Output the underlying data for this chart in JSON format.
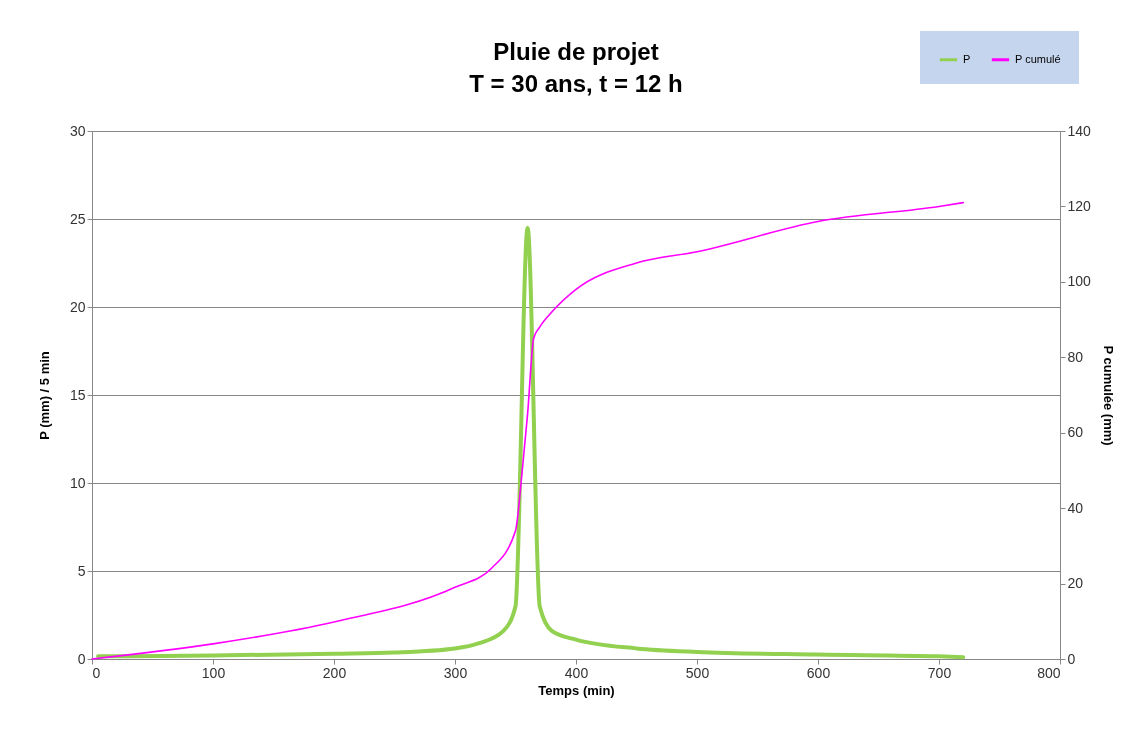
{
  "chart_data": {
    "type": "line",
    "title": [
      "Pluie de projet",
      "T = 30 ans, t = 12 h"
    ],
    "xlabel": "Temps (min)",
    "ylabel": "P  (mm) / 5 min",
    "y2label": "P cumulée (mm)",
    "xlim": [
      0,
      800
    ],
    "xticks": [
      0,
      100,
      200,
      300,
      400,
      500,
      600,
      700,
      800
    ],
    "ylim": [
      0,
      30
    ],
    "yticks": [
      0,
      5,
      10,
      15,
      20,
      25,
      30
    ],
    "y2lim": [
      0,
      140
    ],
    "y2ticks": [
      0,
      20,
      40,
      60,
      80,
      100,
      120,
      140
    ],
    "grid": "y",
    "legend": "top right",
    "series": [
      {
        "name": "P",
        "color": "#92d050",
        "x": [
          5,
          100,
          200,
          250,
          300,
          320,
          340,
          350,
          360,
          370,
          380,
          400,
          450,
          500,
          600,
          700,
          720
        ],
        "values": [
          0.15,
          0.2,
          0.3,
          0.37,
          0.6,
          0.9,
          1.6,
          3.0,
          24.5,
          3.0,
          1.6,
          1.1,
          0.6,
          0.4,
          0.25,
          0.15,
          0.1
        ]
      },
      {
        "name": "P cumulé",
        "color": "#ff00ff",
        "axis": "y2",
        "x": [
          0,
          100,
          200,
          300,
          330,
          350,
          355,
          360,
          365,
          370,
          380,
          400,
          450,
          500,
          600,
          700,
          720
        ],
        "values": [
          0,
          4,
          9.8,
          19,
          24,
          34,
          48,
          65,
          85,
          88,
          92,
          98,
          105,
          108,
          116,
          120,
          121
        ]
      }
    ]
  }
}
